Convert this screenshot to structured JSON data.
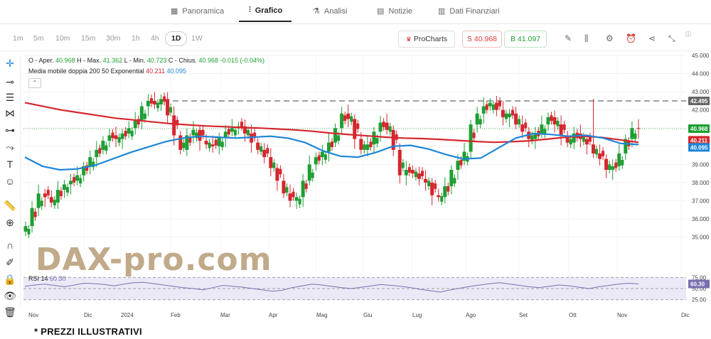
{
  "nav": {
    "tabs": [
      {
        "label": "Panoramica",
        "icon": "grid-icon"
      },
      {
        "label": "Grafico",
        "icon": "candlestick-icon"
      },
      {
        "label": "Analisi",
        "icon": "flask-icon"
      },
      {
        "label": "Notizie",
        "icon": "newspaper-icon"
      },
      {
        "label": "Dati Finanziari",
        "icon": "table-icon"
      }
    ],
    "active": "Grafico"
  },
  "toolbar": {
    "timeframes": [
      "1m",
      "5m",
      "10m",
      "15m",
      "30m",
      "1h",
      "4h",
      "1D",
      "1W"
    ],
    "selected_timeframe": "1D",
    "procharts_label": "ProCharts",
    "sell_label": "S 40.968",
    "buy_label": "B 41.097",
    "colors": {
      "sell": "#e03a3e",
      "buy": "#1e9e32"
    }
  },
  "legend": {
    "ohlc_text": "O - Aper.",
    "open": "40.968",
    "high_label": "H - Max.",
    "high": "41.362",
    "low_label": "L - Min.",
    "low": "40.723",
    "close_label": "C - Chius.",
    "close": "40.968",
    "change": "-0.015 (-0.04%)",
    "ma_label": "Media mobile doppia 200 50 Exponential",
    "ma200": "40.211",
    "ma50": "40.095"
  },
  "rsi": {
    "label": "RSI 14",
    "value": "60.30"
  },
  "watermark": "DAX-pro.com",
  "disclaimer": "* PREZZI ILLUSTRATIVI",
  "chart_data": {
    "type": "candlestick",
    "y_ticks": [
      "45.000",
      "44.000",
      "43.000",
      "42.000",
      "41.000",
      "40.000",
      "39.000",
      "38.000",
      "37.000",
      "36.000",
      "35.000"
    ],
    "ylim": [
      34.2,
      45.0
    ],
    "x_ticks": [
      "Nov",
      "Dic",
      "2024",
      "Feb",
      "Mar",
      "Apr",
      "Mag",
      "Giu",
      "Lug",
      "Ago",
      "Set",
      "Ott",
      "Nov",
      "Dic"
    ],
    "price_tags": [
      {
        "label": "42.495",
        "value": 42.495,
        "color": "#666666"
      },
      {
        "label": "40.968",
        "value": 40.968,
        "color": "#1e9e32"
      },
      {
        "label": "40.211",
        "value": 40.211,
        "color": "#d6262e"
      },
      {
        "label": "40.095",
        "value": 40.095,
        "color": "#1e86d8"
      }
    ],
    "resistance_level": 42.495,
    "close_series": [
      35.6,
      36.6,
      37.4,
      37.2,
      36.9,
      37.6,
      37.9,
      38.1,
      38.4,
      38.9,
      39.4,
      39.8,
      40.3,
      40.6,
      40.4,
      40.7,
      41.0,
      41.4,
      42.2,
      42.5,
      42.3,
      42.6,
      41.7,
      40.6,
      39.8,
      40.6,
      40.9,
      40.3,
      40.1,
      40.0,
      40.5,
      40.8,
      41.0,
      41.1,
      40.7,
      40.2,
      39.8,
      39.4,
      38.8,
      38.1,
      37.4,
      37.0,
      37.2,
      38.1,
      39.0,
      39.4,
      39.7,
      40.2,
      41.0,
      41.8,
      41.5,
      40.4,
      39.8,
      40.1,
      40.8,
      41.3,
      40.9,
      39.8,
      38.4,
      38.7,
      38.5,
      38.2,
      38.0,
      37.3,
      37.2,
      37.8,
      38.7,
      39.2,
      39.7,
      41.2,
      41.8,
      42.2,
      42.4,
      42.0,
      41.6,
      41.8,
      41.2,
      40.8,
      40.4,
      40.7,
      41.2,
      41.6,
      41.2,
      40.6,
      40.2,
      40.7,
      40.4,
      40.1,
      39.6,
      39.3,
      38.7,
      38.9,
      39.6,
      40.4,
      41.0,
      40.968
    ],
    "ma200_series": [
      42.4,
      42.2,
      42.0,
      41.85,
      41.7,
      41.55,
      41.45,
      41.35,
      41.25,
      41.18,
      41.12,
      41.08,
      41.03,
      41.0,
      40.95,
      40.9,
      40.82,
      40.72,
      40.64,
      40.57,
      40.5,
      40.45,
      40.42,
      40.38,
      40.32,
      40.26,
      40.22,
      40.25,
      40.3,
      40.4,
      40.5,
      40.55,
      40.48,
      40.35,
      40.211
    ],
    "ma50_series": [
      39.4,
      38.9,
      38.7,
      38.75,
      38.95,
      39.3,
      39.65,
      39.95,
      40.25,
      40.45,
      40.55,
      40.5,
      40.45,
      40.5,
      40.55,
      40.45,
      40.2,
      39.75,
      39.45,
      39.4,
      39.65,
      40.0,
      40.05,
      39.85,
      39.55,
      39.3,
      39.35,
      39.9,
      40.45,
      40.7,
      40.65,
      40.55,
      40.6,
      40.45,
      40.15,
      40.095
    ],
    "rsi_series": [
      55,
      58,
      60,
      57,
      54,
      58,
      62,
      61,
      59,
      56,
      60,
      63,
      64,
      61,
      58,
      55,
      52,
      50,
      47,
      52,
      57,
      55,
      53,
      50,
      47,
      44,
      46,
      52,
      56,
      60,
      58,
      55,
      52,
      50,
      53,
      56,
      59,
      57,
      55,
      52,
      48,
      45,
      42,
      47,
      51,
      55,
      58,
      61,
      63,
      60,
      57,
      54,
      52,
      55,
      58,
      56,
      53,
      50,
      54,
      57,
      60,
      62,
      60.3
    ],
    "rsi_levels": [
      75,
      50,
      25
    ],
    "colors": {
      "up": "#1e9e32",
      "down": "#d6262e",
      "ma200": "#d6262e",
      "ma50": "#1e86d8",
      "rsi": "#7a6fb0"
    }
  }
}
